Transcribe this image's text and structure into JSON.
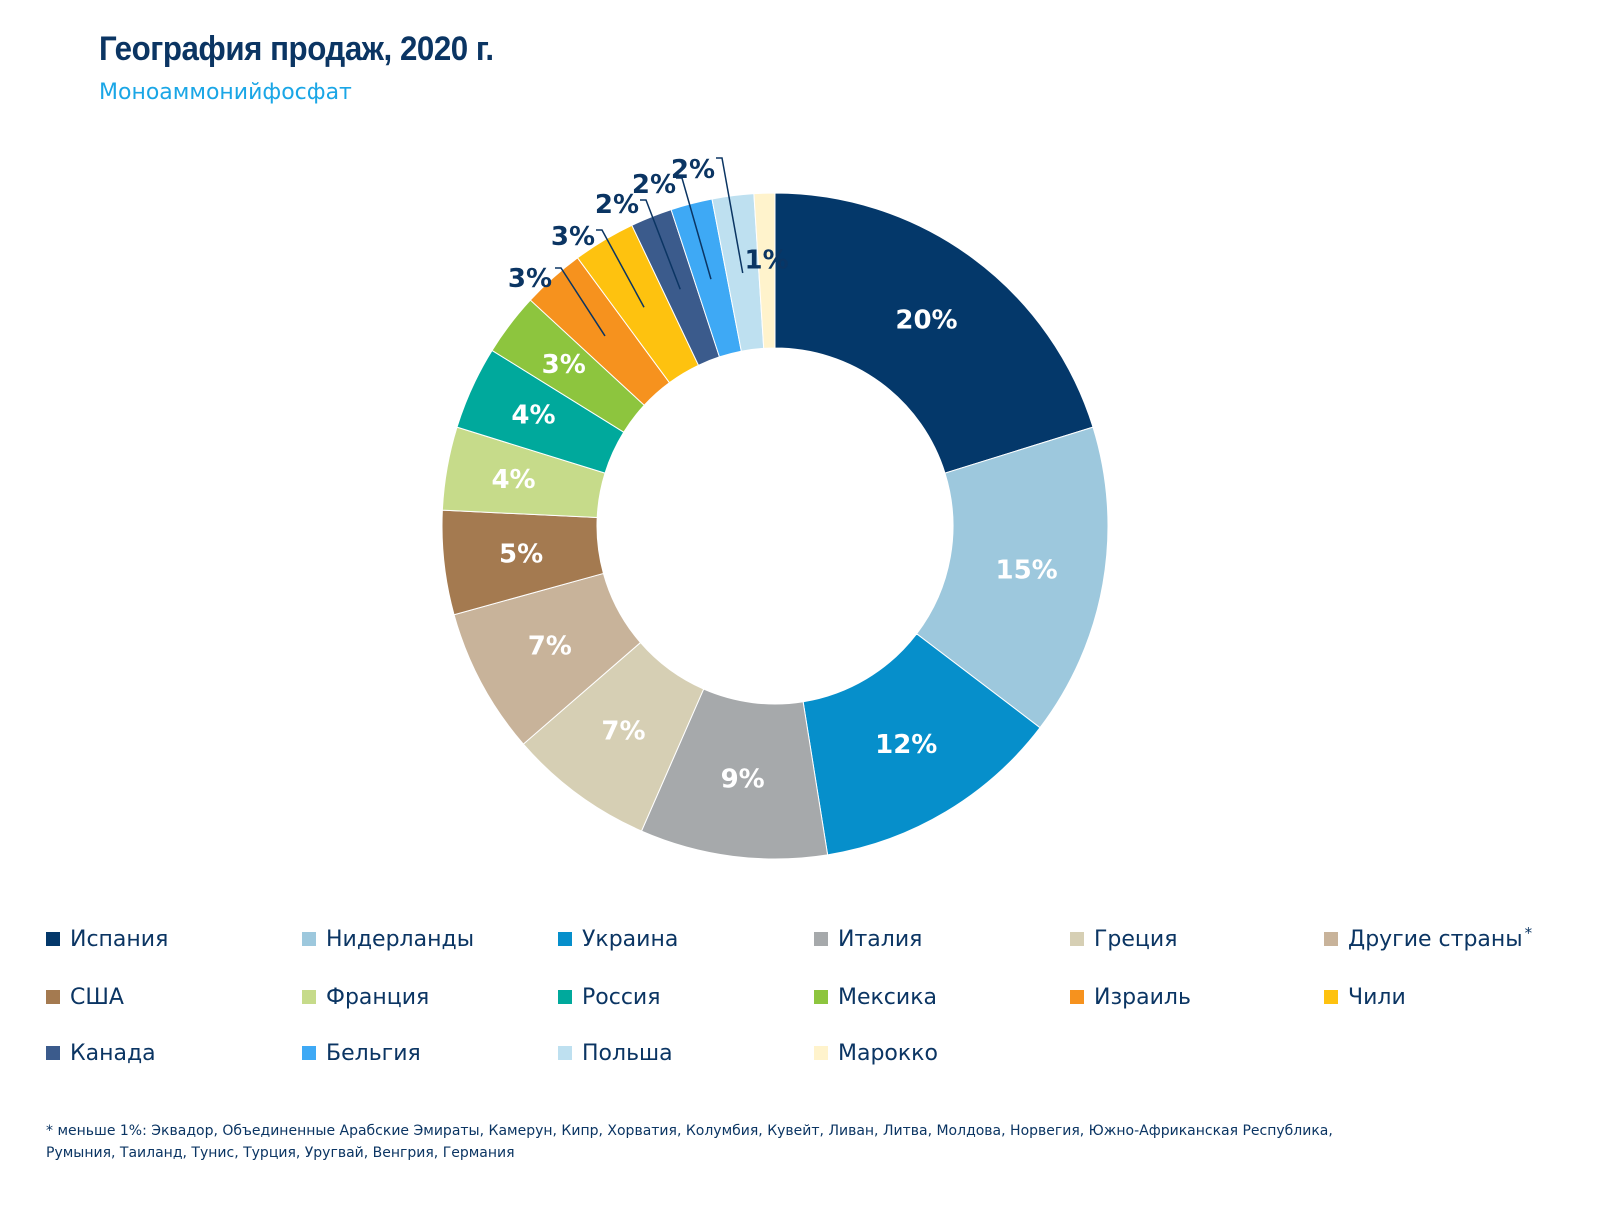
{
  "title": "География продаж, 2020 г.",
  "subtitle": "Моноаммонийфосфат",
  "chart_data": {
    "type": "pie",
    "donut": true,
    "legend_position": "bottom",
    "series": [
      {
        "name": "Испания",
        "value": 20,
        "label": "20%",
        "color": "#04386a",
        "label_color": "#ffffff"
      },
      {
        "name": "Нидерланды",
        "value": 15,
        "label": "15%",
        "color": "#9dc8dd",
        "label_color": "#ffffff"
      },
      {
        "name": "Украина",
        "value": 12,
        "label": "12%",
        "color": "#068fcb",
        "label_color": "#ffffff"
      },
      {
        "name": "Италия",
        "value": 9,
        "label": "9%",
        "color": "#a6a9ab",
        "label_color": "#ffffff"
      },
      {
        "name": "Греция",
        "value": 7,
        "label": "7%",
        "color": "#d6cfb4",
        "label_color": "#ffffff"
      },
      {
        "name": "Другие страны",
        "note": "*",
        "value": 7,
        "label": "7%",
        "color": "#c8b39a",
        "label_color": "#ffffff"
      },
      {
        "name": "США",
        "value": 5,
        "label": "5%",
        "color": "#a47a50",
        "label_color": "#ffffff"
      },
      {
        "name": "Франция",
        "value": 4,
        "label": "4%",
        "color": "#c6db8a",
        "label_color": "#ffffff"
      },
      {
        "name": "Россия",
        "value": 4,
        "label": "4%",
        "color": "#00a99c",
        "label_color": "#ffffff"
      },
      {
        "name": "Мексика",
        "value": 3,
        "label": "3%",
        "color": "#8dc53e",
        "label_color": "#ffffff"
      },
      {
        "name": "Израиль",
        "value": 3,
        "label": "3%",
        "color": "#f6921e",
        "label_color": "#ffffff"
      },
      {
        "name": "Чили",
        "value": 3,
        "label": "3%",
        "color": "#fec20f",
        "label_color": "#0b3563"
      },
      {
        "name": "Канада",
        "value": 2,
        "label": "2%",
        "color": "#3b5b8c",
        "label_color": "#0b3563"
      },
      {
        "name": "Бельгия",
        "value": 2,
        "label": "2%",
        "color": "#3ea9f5",
        "label_color": "#0b3563"
      },
      {
        "name": "Польша",
        "value": 2,
        "label": "2%",
        "color": "#bee0f0",
        "label_color": "#0b3563"
      },
      {
        "name": "Марокко",
        "value": 1,
        "label": "1%",
        "color": "#fff3cc",
        "label_color": "#0b3563"
      }
    ]
  },
  "footnote": "* меньше 1%: Эквадор, Объединенные Арабские Эмираты, Камерун, Кипр, Хорватия, Колумбия, Кувейт, Ливан, Литва, Молдова, Норвегия, Южно-Африканская Республика, Румыния, Таиланд, Тунис, Турция, Уругвай, Венгрия, Германия"
}
